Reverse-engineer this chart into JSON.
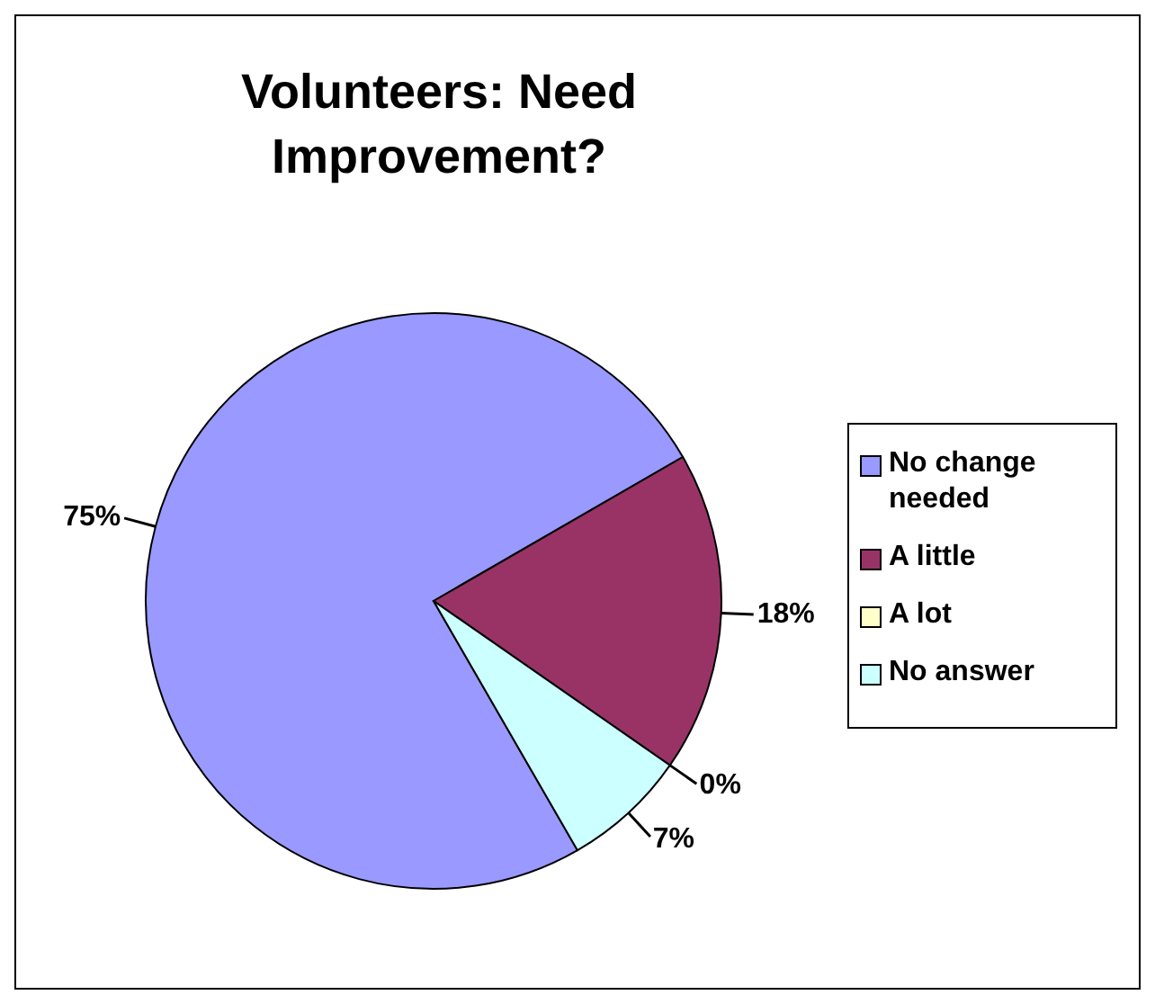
{
  "chart_data": {
    "type": "pie",
    "title": "Volunteers: Need Improvement?",
    "categories": [
      "No change needed",
      "A little",
      "A lot",
      "No answer"
    ],
    "values": [
      75,
      18,
      0,
      7
    ],
    "value_labels": [
      "75%",
      "18%",
      "0%",
      "7%"
    ],
    "colors": [
      "#9999ff",
      "#993366",
      "#ffffcc",
      "#ccffff"
    ],
    "legend": "right"
  }
}
